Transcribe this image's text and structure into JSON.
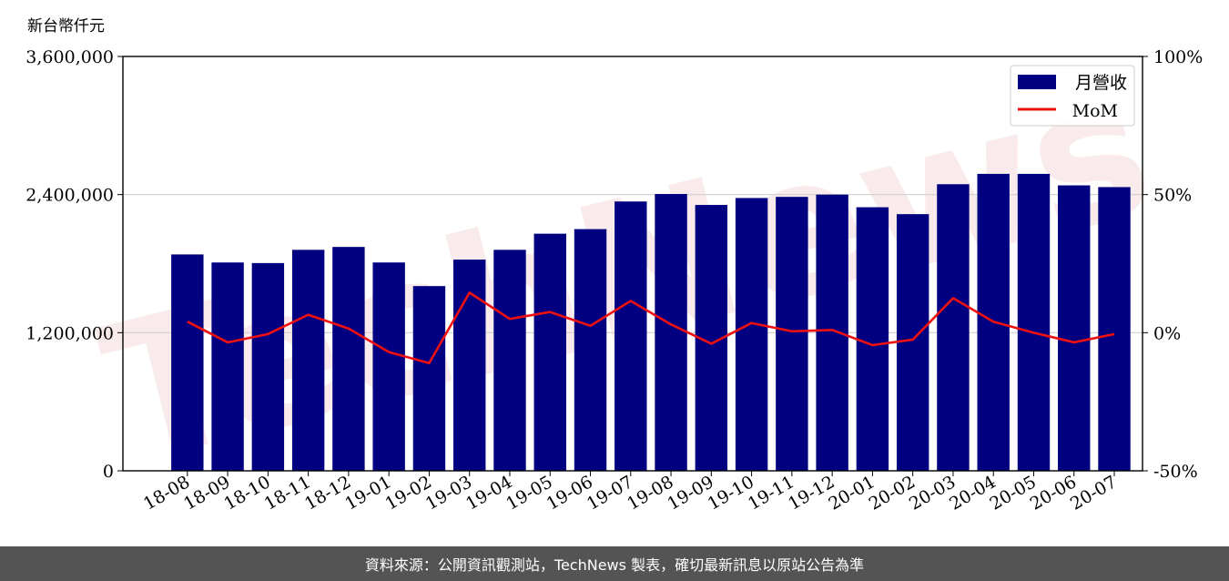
{
  "unit_label": "新台幣仟元",
  "watermark_text": "TechNews",
  "footer": "資料來源：公開資訊觀測站，TechNews 製表，確切最新訊息以原站公告為準",
  "colors": {
    "bar": "#000080",
    "line": "#ee1111",
    "grid": "#cfcfcf",
    "footer_bg": "#545454"
  },
  "chart_data": {
    "type": "bar",
    "categories": [
      "18-08",
      "18-09",
      "18-10",
      "18-11",
      "18-12",
      "19-01",
      "19-02",
      "19-03",
      "19-04",
      "19-05",
      "19-06",
      "19-07",
      "19-08",
      "19-09",
      "19-10",
      "19-11",
      "19-12",
      "20-01",
      "20-02",
      "20-03",
      "20-04",
      "20-05",
      "20-06",
      "20-07"
    ],
    "series": [
      {
        "name": "月營收",
        "type": "bar",
        "axis": "left",
        "values": [
          1880000,
          1810000,
          1805000,
          1920000,
          1945000,
          1810000,
          1605000,
          1835000,
          1920000,
          2060000,
          2100000,
          2340000,
          2405000,
          2310000,
          2370000,
          2380000,
          2400000,
          2290000,
          2230000,
          2490000,
          2580000,
          2580000,
          2480000,
          2465000
        ]
      },
      {
        "name": "MoM",
        "type": "line",
        "axis": "right",
        "values": [
          4.0,
          -3.5,
          -0.5,
          6.5,
          1.5,
          -7.0,
          -11.0,
          14.5,
          5.0,
          7.5,
          2.5,
          11.5,
          3.0,
          -4.0,
          3.5,
          0.5,
          1.0,
          -4.5,
          -2.5,
          12.5,
          4.0,
          0.0,
          -3.5,
          -0.5
        ]
      }
    ],
    "y_left": {
      "ylim": [
        0,
        3600000
      ],
      "ticks": [
        "0",
        "1,200,000",
        "2,400,000",
        "3,600,000"
      ]
    },
    "y_right": {
      "ylim": [
        -50,
        100
      ],
      "ticks": [
        "-50%",
        "0%",
        "50%",
        "100%"
      ]
    },
    "grid": true,
    "legend_position": "top-right",
    "legend": [
      "月營收",
      "MoM"
    ]
  }
}
